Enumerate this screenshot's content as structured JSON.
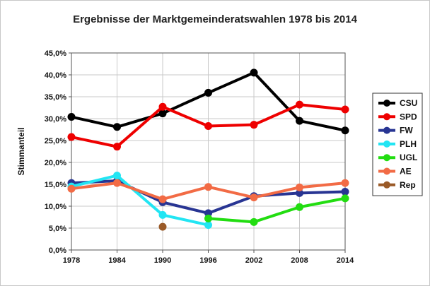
{
  "chart_data": {
    "type": "line",
    "title": "Ergebnisse der Marktgemeinderatswahlen 1978 bis 2014",
    "xlabel": "",
    "ylabel": "Stimmanteil",
    "x": [
      "1978",
      "1984",
      "1990",
      "1996",
      "2002",
      "2008",
      "2014"
    ],
    "ylim": [
      0,
      45
    ],
    "yticks": [
      "0,0%",
      "5,0%",
      "10,0%",
      "15,0%",
      "20,0%",
      "25,0%",
      "30,0%",
      "35,0%",
      "40,0%",
      "45,0%"
    ],
    "grid": true,
    "legend_position": "right",
    "series": [
      {
        "name": "CSU",
        "color": "#000000",
        "values": [
          30.4,
          28.1,
          31.2,
          35.9,
          40.5,
          29.5,
          27.3
        ]
      },
      {
        "name": "SPD",
        "color": "#ee0000",
        "values": [
          25.8,
          23.6,
          32.7,
          28.3,
          28.6,
          33.2,
          32.1
        ]
      },
      {
        "name": "FW",
        "color": "#283593",
        "values": [
          15.3,
          15.8,
          10.9,
          8.4,
          12.3,
          13.0,
          13.3
        ]
      },
      {
        "name": "PLH",
        "color": "#22e5f3",
        "values": [
          14.5,
          17.0,
          8.0,
          5.7,
          null,
          null,
          null
        ]
      },
      {
        "name": "UGL",
        "color": "#22dd11",
        "values": [
          null,
          null,
          null,
          7.2,
          6.4,
          9.8,
          11.8
        ]
      },
      {
        "name": "AE",
        "color": "#f26b45",
        "values": [
          14.0,
          15.3,
          11.6,
          14.4,
          12.0,
          14.3,
          15.3
        ]
      },
      {
        "name": "Rep",
        "color": "#9a5a28",
        "values": [
          null,
          null,
          5.3,
          null,
          null,
          null,
          null
        ]
      }
    ]
  }
}
